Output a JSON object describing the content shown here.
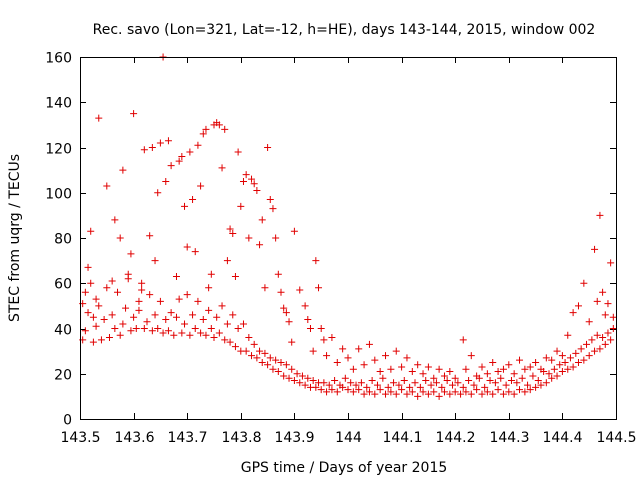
{
  "chart_data": {
    "type": "scatter",
    "title": "Rec. savo (Lon=321, Lat=-12, h=HE), days 143-144, 2015, window 002",
    "xlabel": "GPS time / Days of year 2015",
    "ylabel": "STEC from uqrg / TECUs",
    "xlim": [
      143.5,
      144.5
    ],
    "ylim": [
      0,
      160
    ],
    "xticks": [
      "143.5",
      "143.6",
      "143.7",
      "143.8",
      "143.9",
      "144",
      "144.1",
      "144.2",
      "144.3",
      "144.4",
      "144.5"
    ],
    "yticks": [
      "0",
      "20",
      "40",
      "60",
      "80",
      "100",
      "120",
      "140",
      "160"
    ],
    "grid": false,
    "legend": "none",
    "marker": "+",
    "color": "#e00000",
    "points": [
      [
        143.505,
        35
      ],
      [
        143.51,
        39
      ],
      [
        143.515,
        47
      ],
      [
        143.52,
        60
      ],
      [
        143.525,
        34
      ],
      [
        143.53,
        41
      ],
      [
        143.535,
        50
      ],
      [
        143.54,
        35
      ],
      [
        143.545,
        44
      ],
      [
        143.55,
        58
      ],
      [
        143.555,
        36
      ],
      [
        143.56,
        46
      ],
      [
        143.565,
        40
      ],
      [
        143.57,
        56
      ],
      [
        143.575,
        37
      ],
      [
        143.58,
        42
      ],
      [
        143.585,
        49
      ],
      [
        143.59,
        62
      ],
      [
        143.595,
        39
      ],
      [
        143.6,
        45
      ],
      [
        143.605,
        40
      ],
      [
        143.61,
        48
      ],
      [
        143.615,
        60
      ],
      [
        143.62,
        40
      ],
      [
        143.625,
        43
      ],
      [
        143.63,
        55
      ],
      [
        143.635,
        39
      ],
      [
        143.64,
        46
      ],
      [
        143.645,
        40
      ],
      [
        143.65,
        52
      ],
      [
        143.655,
        38
      ],
      [
        143.66,
        44
      ],
      [
        143.665,
        39
      ],
      [
        143.67,
        47
      ],
      [
        143.675,
        37
      ],
      [
        143.68,
        45
      ],
      [
        143.685,
        53
      ],
      [
        143.69,
        38
      ],
      [
        143.695,
        42
      ],
      [
        143.7,
        55
      ],
      [
        143.705,
        37
      ],
      [
        143.71,
        46
      ],
      [
        143.715,
        40
      ],
      [
        143.72,
        52
      ],
      [
        143.725,
        38
      ],
      [
        143.73,
        44
      ],
      [
        143.735,
        37
      ],
      [
        143.74,
        48
      ],
      [
        143.745,
        40
      ],
      [
        143.75,
        36
      ],
      [
        143.755,
        45
      ],
      [
        143.76,
        38
      ],
      [
        143.765,
        50
      ],
      [
        143.77,
        35
      ],
      [
        143.775,
        42
      ],
      [
        143.78,
        34
      ],
      [
        143.785,
        46
      ],
      [
        143.79,
        32
      ],
      [
        143.795,
        40
      ],
      [
        143.8,
        30
      ],
      [
        143.805,
        42
      ],
      [
        143.81,
        30
      ],
      [
        143.815,
        36
      ],
      [
        143.82,
        28
      ],
      [
        143.825,
        33
      ],
      [
        143.83,
        27
      ],
      [
        143.835,
        30
      ],
      [
        143.84,
        25
      ],
      [
        143.845,
        29
      ],
      [
        143.85,
        24
      ],
      [
        143.855,
        27
      ],
      [
        143.86,
        22
      ],
      [
        143.865,
        26
      ],
      [
        143.87,
        21
      ],
      [
        143.875,
        25
      ],
      [
        143.88,
        19
      ],
      [
        143.885,
        24
      ],
      [
        143.89,
        18
      ],
      [
        143.895,
        22
      ],
      [
        143.9,
        17
      ],
      [
        143.905,
        20
      ],
      [
        143.91,
        16
      ],
      [
        143.915,
        19
      ],
      [
        143.92,
        15
      ],
      [
        143.925,
        18
      ],
      [
        143.93,
        14
      ],
      [
        143.935,
        17
      ],
      [
        143.94,
        14
      ],
      [
        143.945,
        16
      ],
      [
        143.95,
        13
      ],
      [
        143.955,
        16
      ],
      [
        143.96,
        12
      ],
      [
        143.965,
        15
      ],
      [
        143.97,
        13
      ],
      [
        143.975,
        17
      ],
      [
        143.98,
        12
      ],
      [
        143.985,
        15
      ],
      [
        143.99,
        14
      ],
      [
        143.995,
        18
      ],
      [
        144.0,
        13
      ],
      [
        144.005,
        16
      ],
      [
        144.01,
        12
      ],
      [
        144.015,
        15
      ],
      [
        144.02,
        13
      ],
      [
        144.025,
        16
      ],
      [
        144.03,
        11
      ],
      [
        144.035,
        14
      ],
      [
        144.04,
        12
      ],
      [
        144.045,
        17
      ],
      [
        144.05,
        11
      ],
      [
        144.055,
        15
      ],
      [
        144.06,
        13
      ],
      [
        144.065,
        18
      ],
      [
        144.07,
        11
      ],
      [
        144.075,
        14
      ],
      [
        144.08,
        12
      ],
      [
        144.085,
        16
      ],
      [
        144.09,
        11
      ],
      [
        144.095,
        15
      ],
      [
        144.1,
        13
      ],
      [
        144.105,
        17
      ],
      [
        144.11,
        11
      ],
      [
        144.115,
        14
      ],
      [
        144.12,
        12
      ],
      [
        144.125,
        16
      ],
      [
        144.13,
        10
      ],
      [
        144.135,
        14
      ],
      [
        144.14,
        12
      ],
      [
        144.145,
        17
      ],
      [
        144.15,
        11
      ],
      [
        144.155,
        15
      ],
      [
        144.16,
        12
      ],
      [
        144.165,
        16
      ],
      [
        144.17,
        10
      ],
      [
        144.175,
        14
      ],
      [
        144.18,
        12
      ],
      [
        144.185,
        17
      ],
      [
        144.19,
        11
      ],
      [
        144.195,
        15
      ],
      [
        144.2,
        12
      ],
      [
        144.205,
        16
      ],
      [
        144.21,
        11
      ],
      [
        144.215,
        14
      ],
      [
        144.22,
        12
      ],
      [
        144.225,
        17
      ],
      [
        144.23,
        11
      ],
      [
        144.235,
        15
      ],
      [
        144.24,
        13
      ],
      [
        144.245,
        18
      ],
      [
        144.25,
        11
      ],
      [
        144.255,
        14
      ],
      [
        144.26,
        12
      ],
      [
        144.265,
        17
      ],
      [
        144.27,
        11
      ],
      [
        144.275,
        16
      ],
      [
        144.28,
        13
      ],
      [
        144.285,
        18
      ],
      [
        144.29,
        11
      ],
      [
        144.295,
        15
      ],
      [
        144.3,
        12
      ],
      [
        144.305,
        17
      ],
      [
        144.31,
        11
      ],
      [
        144.315,
        16
      ],
      [
        144.32,
        13
      ],
      [
        144.325,
        18
      ],
      [
        144.33,
        12
      ],
      [
        144.335,
        15
      ],
      [
        144.34,
        13
      ],
      [
        144.345,
        19
      ],
      [
        144.35,
        14
      ],
      [
        144.355,
        17
      ],
      [
        144.36,
        15
      ],
      [
        144.365,
        21
      ],
      [
        144.37,
        16
      ],
      [
        144.375,
        20
      ],
      [
        144.38,
        18
      ],
      [
        144.385,
        22
      ],
      [
        144.39,
        19
      ],
      [
        144.395,
        24
      ],
      [
        144.4,
        21
      ],
      [
        144.405,
        25
      ],
      [
        144.41,
        22
      ],
      [
        144.415,
        27
      ],
      [
        144.42,
        23
      ],
      [
        144.425,
        29
      ],
      [
        144.43,
        25
      ],
      [
        144.435,
        31
      ],
      [
        144.44,
        26
      ],
      [
        144.445,
        33
      ],
      [
        144.45,
        28
      ],
      [
        144.455,
        35
      ],
      [
        144.46,
        30
      ],
      [
        144.465,
        37
      ],
      [
        144.47,
        31
      ],
      [
        144.475,
        36
      ],
      [
        144.48,
        33
      ],
      [
        144.485,
        38
      ],
      [
        144.49,
        35
      ],
      [
        144.495,
        40
      ],
      [
        143.505,
        51
      ],
      [
        143.51,
        56
      ],
      [
        143.515,
        67
      ],
      [
        143.52,
        83
      ],
      [
        143.525,
        45
      ],
      [
        143.53,
        53
      ],
      [
        143.535,
        133
      ],
      [
        143.55,
        103
      ],
      [
        143.56,
        61
      ],
      [
        143.565,
        88
      ],
      [
        143.575,
        80
      ],
      [
        143.58,
        110
      ],
      [
        143.59,
        64
      ],
      [
        143.595,
        73
      ],
      [
        143.6,
        135
      ],
      [
        143.61,
        52
      ],
      [
        143.615,
        57
      ],
      [
        143.62,
        119
      ],
      [
        143.63,
        81
      ],
      [
        143.635,
        120
      ],
      [
        143.64,
        70
      ],
      [
        143.645,
        100
      ],
      [
        143.65,
        122
      ],
      [
        143.655,
        160
      ],
      [
        143.66,
        105
      ],
      [
        143.665,
        123
      ],
      [
        143.67,
        112
      ],
      [
        143.68,
        63
      ],
      [
        143.685,
        114
      ],
      [
        143.69,
        116
      ],
      [
        143.695,
        94
      ],
      [
        143.7,
        76
      ],
      [
        143.705,
        118
      ],
      [
        143.71,
        97
      ],
      [
        143.715,
        74
      ],
      [
        143.72,
        121
      ],
      [
        143.725,
        103
      ],
      [
        143.73,
        126
      ],
      [
        143.735,
        128
      ],
      [
        143.74,
        58
      ],
      [
        143.745,
        64
      ],
      [
        143.75,
        130
      ],
      [
        143.755,
        131
      ],
      [
        143.76,
        130
      ],
      [
        143.765,
        111
      ],
      [
        143.77,
        128
      ],
      [
        143.775,
        70
      ],
      [
        143.78,
        84
      ],
      [
        143.785,
        82
      ],
      [
        143.79,
        63
      ],
      [
        143.795,
        118
      ],
      [
        143.8,
        94
      ],
      [
        143.805,
        105
      ],
      [
        143.81,
        108
      ],
      [
        143.815,
        80
      ],
      [
        143.82,
        106
      ],
      [
        143.825,
        104
      ],
      [
        143.83,
        101
      ],
      [
        143.835,
        77
      ],
      [
        143.84,
        88
      ],
      [
        143.845,
        58
      ],
      [
        143.85,
        120
      ],
      [
        143.855,
        97
      ],
      [
        143.86,
        93
      ],
      [
        143.865,
        80
      ],
      [
        143.87,
        64
      ],
      [
        143.875,
        56
      ],
      [
        143.88,
        49
      ],
      [
        143.885,
        47
      ],
      [
        143.89,
        43
      ],
      [
        143.895,
        34
      ],
      [
        143.9,
        83
      ],
      [
        143.91,
        57
      ],
      [
        143.92,
        50
      ],
      [
        143.925,
        44
      ],
      [
        143.93,
        40
      ],
      [
        143.935,
        30
      ],
      [
        143.94,
        70
      ],
      [
        143.945,
        58
      ],
      [
        143.95,
        40
      ],
      [
        143.955,
        35
      ],
      [
        143.96,
        28
      ],
      [
        143.97,
        36
      ],
      [
        143.98,
        25
      ],
      [
        143.99,
        31
      ],
      [
        144.0,
        27
      ],
      [
        144.01,
        22
      ],
      [
        144.02,
        31
      ],
      [
        144.03,
        24
      ],
      [
        144.04,
        33
      ],
      [
        144.05,
        26
      ],
      [
        144.06,
        21
      ],
      [
        144.07,
        28
      ],
      [
        144.08,
        22
      ],
      [
        144.09,
        30
      ],
      [
        144.1,
        23
      ],
      [
        144.11,
        27
      ],
      [
        144.12,
        21
      ],
      [
        144.13,
        24
      ],
      [
        144.14,
        20
      ],
      [
        144.15,
        23
      ],
      [
        144.16,
        18
      ],
      [
        144.17,
        22
      ],
      [
        144.18,
        19
      ],
      [
        144.19,
        21
      ],
      [
        144.2,
        18
      ],
      [
        144.215,
        35
      ],
      [
        144.22,
        22
      ],
      [
        144.23,
        28
      ],
      [
        144.24,
        19
      ],
      [
        144.25,
        23
      ],
      [
        144.26,
        20
      ],
      [
        144.27,
        25
      ],
      [
        144.28,
        21
      ],
      [
        144.29,
        22
      ],
      [
        144.3,
        24
      ],
      [
        144.31,
        20
      ],
      [
        144.32,
        26
      ],
      [
        144.33,
        22
      ],
      [
        144.34,
        23
      ],
      [
        144.35,
        25
      ],
      [
        144.36,
        22
      ],
      [
        144.37,
        27
      ],
      [
        144.38,
        26
      ],
      [
        144.39,
        30
      ],
      [
        144.4,
        28
      ],
      [
        144.41,
        37
      ],
      [
        144.42,
        47
      ],
      [
        144.43,
        50
      ],
      [
        144.44,
        60
      ],
      [
        144.45,
        43
      ],
      [
        144.46,
        75
      ],
      [
        144.465,
        52
      ],
      [
        144.47,
        90
      ],
      [
        144.475,
        56
      ],
      [
        144.48,
        46
      ],
      [
        144.485,
        51
      ],
      [
        144.49,
        69
      ],
      [
        144.495,
        45
      ]
    ]
  }
}
